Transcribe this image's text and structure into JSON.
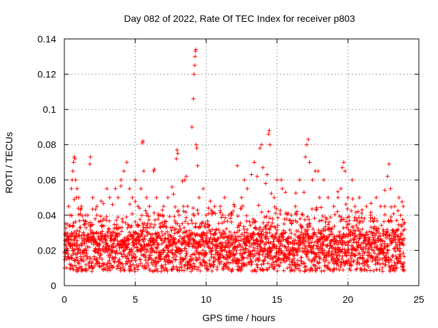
{
  "chart_data": {
    "type": "scatter",
    "title": "Day 082 of 2022, Rate Of TEC Index for receiver p803",
    "xlabel": "GPS time / hours",
    "ylabel": "ROTI / TECUs",
    "xlim": [
      0,
      25
    ],
    "ylim": [
      0,
      0.14
    ],
    "xticks": [
      "0",
      "5",
      "10",
      "15",
      "20",
      "25"
    ],
    "yticks": [
      "0",
      "0.02",
      "0.04",
      "0.06",
      "0.08",
      "0.1",
      "0.12",
      "0.14"
    ],
    "grid": true,
    "marker": "plus",
    "color": "#ff0000",
    "series": [
      {
        "x": [
          0.1,
          0.2,
          0.3,
          0.4,
          0.5,
          0.55,
          0.6,
          0.65,
          0.7,
          0.75,
          0.8,
          0.85,
          0.9,
          1.0,
          1.2,
          1.5,
          1.8,
          1.85,
          2.0,
          2.3,
          2.6,
          3.0,
          3.2,
          3.4,
          3.6,
          3.8,
          4.0,
          4.2,
          4.4,
          4.6,
          4.8,
          5.0,
          5.2,
          5.4,
          5.5,
          5.55,
          5.6,
          5.8,
          6.0,
          6.3,
          6.35,
          6.5,
          6.8,
          7.0,
          7.3,
          7.6,
          7.9,
          7.95,
          8.0,
          8.1,
          8.4,
          8.5,
          8.6,
          8.7,
          9.0,
          9.1,
          9.15,
          9.2,
          9.22,
          9.25,
          9.27,
          9.3,
          9.35,
          9.4,
          9.5,
          9.8,
          10.0,
          10.3,
          10.6,
          11.0,
          11.3,
          11.6,
          11.8,
          12.0,
          12.2,
          12.5,
          12.7,
          12.9,
          13.2,
          13.4,
          13.6,
          13.8,
          13.9,
          14.0,
          14.2,
          14.3,
          14.4,
          14.45,
          14.5,
          14.8,
          15.0,
          15.3,
          15.6,
          16.0,
          16.3,
          16.6,
          16.9,
          17.0,
          17.1,
          17.2,
          17.3,
          17.5,
          17.7,
          17.9,
          18.0,
          18.3,
          18.6,
          19.0,
          19.3,
          19.5,
          19.6,
          19.7,
          19.8,
          20.0,
          20.3,
          20.5,
          20.8,
          21.0,
          21.3,
          21.6,
          22.0,
          22.3,
          22.6,
          22.8,
          22.9,
          23.0,
          23.3,
          23.6,
          23.9
        ],
        "y": [
          0.03,
          0.035,
          0.045,
          0.04,
          0.055,
          0.06,
          0.065,
          0.07,
          0.073,
          0.072,
          0.06,
          0.05,
          0.055,
          0.05,
          0.045,
          0.04,
          0.069,
          0.073,
          0.05,
          0.045,
          0.048,
          0.055,
          0.05,
          0.046,
          0.055,
          0.05,
          0.06,
          0.065,
          0.07,
          0.055,
          0.05,
          0.06,
          0.045,
          0.055,
          0.081,
          0.082,
          0.065,
          0.05,
          0.045,
          0.065,
          0.066,
          0.05,
          0.04,
          0.045,
          0.05,
          0.056,
          0.072,
          0.077,
          0.075,
          0.04,
          0.045,
          0.06,
          0.062,
          0.045,
          0.09,
          0.106,
          0.12,
          0.125,
          0.13,
          0.133,
          0.134,
          0.08,
          0.078,
          0.068,
          0.05,
          0.055,
          0.04,
          0.048,
          0.045,
          0.045,
          0.05,
          0.04,
          0.04,
          0.045,
          0.068,
          0.05,
          0.06,
          0.055,
          0.063,
          0.07,
          0.062,
          0.078,
          0.08,
          0.067,
          0.058,
          0.063,
          0.086,
          0.088,
          0.08,
          0.05,
          0.06,
          0.06,
          0.053,
          0.04,
          0.045,
          0.06,
          0.053,
          0.073,
          0.08,
          0.083,
          0.07,
          0.06,
          0.065,
          0.065,
          0.05,
          0.06,
          0.05,
          0.045,
          0.05,
          0.055,
          0.067,
          0.07,
          0.065,
          0.05,
          0.06,
          0.045,
          0.05,
          0.043,
          0.045,
          0.04,
          0.05,
          0.045,
          0.045,
          0.062,
          0.069,
          0.055,
          0.045,
          0.05,
          0.045
        ]
      }
    ]
  }
}
